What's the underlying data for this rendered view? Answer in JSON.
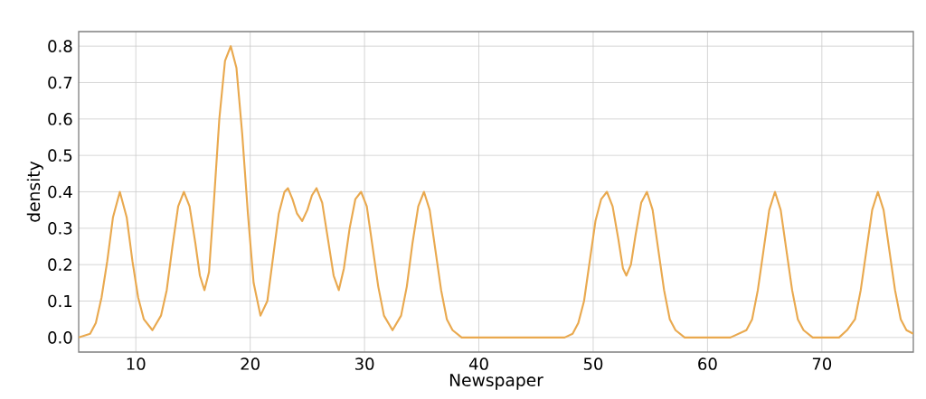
{
  "chart_data": {
    "type": "line",
    "xlabel": "Newspaper",
    "ylabel": "density",
    "x": [
      5,
      6,
      6.5,
      7,
      7.5,
      8,
      8.6,
      9.2,
      9.7,
      10.2,
      10.7,
      11.45,
      12.2,
      12.7,
      13.2,
      13.7,
      14.2,
      14.7,
      15.2,
      15.6,
      16.0,
      16.4,
      16.8,
      17.3,
      17.8,
      18.3,
      18.8,
      19.3,
      19.8,
      20.3,
      20.9,
      21.5,
      22.0,
      22.5,
      23.0,
      23.3,
      23.7,
      24.1,
      24.55,
      25.0,
      25.4,
      25.8,
      26.3,
      26.8,
      27.3,
      27.75,
      28.2,
      28.7,
      29.2,
      29.7,
      30.2,
      30.7,
      31.2,
      31.7,
      32.45,
      33.2,
      33.7,
      34.2,
      34.7,
      35.2,
      35.7,
      36.2,
      36.7,
      37.2,
      37.7,
      38.5,
      40,
      45,
      47.5,
      48.2,
      48.7,
      49.2,
      49.7,
      50.2,
      50.7,
      51.2,
      51.7,
      52.2,
      52.6,
      52.9,
      53.3,
      53.7,
      54.2,
      54.7,
      55.2,
      55.7,
      56.2,
      56.7,
      57.2,
      58,
      59,
      62,
      63.4,
      63.9,
      64.4,
      64.9,
      65.4,
      65.9,
      66.4,
      66.9,
      67.4,
      67.9,
      68.4,
      69.2,
      70,
      71.5,
      72.2,
      72.9,
      73.4,
      73.9,
      74.4,
      74.9,
      75.4,
      75.9,
      76.4,
      76.9,
      77.4,
      78
    ],
    "series": [
      {
        "color": "#e9a94f",
        "values": [
          0.0,
          0.01,
          0.04,
          0.11,
          0.21,
          0.33,
          0.4,
          0.33,
          0.21,
          0.11,
          0.05,
          0.02,
          0.06,
          0.13,
          0.25,
          0.36,
          0.4,
          0.36,
          0.26,
          0.17,
          0.13,
          0.18,
          0.36,
          0.6,
          0.76,
          0.8,
          0.74,
          0.56,
          0.34,
          0.15,
          0.06,
          0.1,
          0.22,
          0.34,
          0.4,
          0.41,
          0.38,
          0.34,
          0.32,
          0.35,
          0.39,
          0.41,
          0.37,
          0.27,
          0.17,
          0.13,
          0.19,
          0.3,
          0.38,
          0.4,
          0.36,
          0.25,
          0.14,
          0.06,
          0.02,
          0.06,
          0.14,
          0.26,
          0.36,
          0.4,
          0.35,
          0.24,
          0.13,
          0.05,
          0.02,
          0.0,
          0.0,
          0.0,
          0.0,
          0.01,
          0.04,
          0.1,
          0.21,
          0.32,
          0.38,
          0.4,
          0.36,
          0.27,
          0.19,
          0.17,
          0.2,
          0.28,
          0.37,
          0.4,
          0.35,
          0.24,
          0.13,
          0.05,
          0.02,
          0.0,
          0.0,
          0.0,
          0.02,
          0.05,
          0.13,
          0.24,
          0.35,
          0.4,
          0.35,
          0.24,
          0.13,
          0.05,
          0.02,
          0.0,
          0.0,
          0.0,
          0.02,
          0.05,
          0.13,
          0.24,
          0.35,
          0.4,
          0.35,
          0.24,
          0.13,
          0.05,
          0.02,
          0.01
        ]
      }
    ],
    "xlim": [
      5,
      78
    ],
    "ylim": [
      -0.04,
      0.84
    ],
    "xticks": [
      10,
      20,
      30,
      40,
      50,
      60,
      70
    ],
    "yticks": [
      {
        "value": 0,
        "label": "0.0"
      },
      0.1,
      0.2,
      0.3,
      0.4,
      0.5,
      0.6,
      0.7,
      0.8
    ],
    "grid": true
  }
}
